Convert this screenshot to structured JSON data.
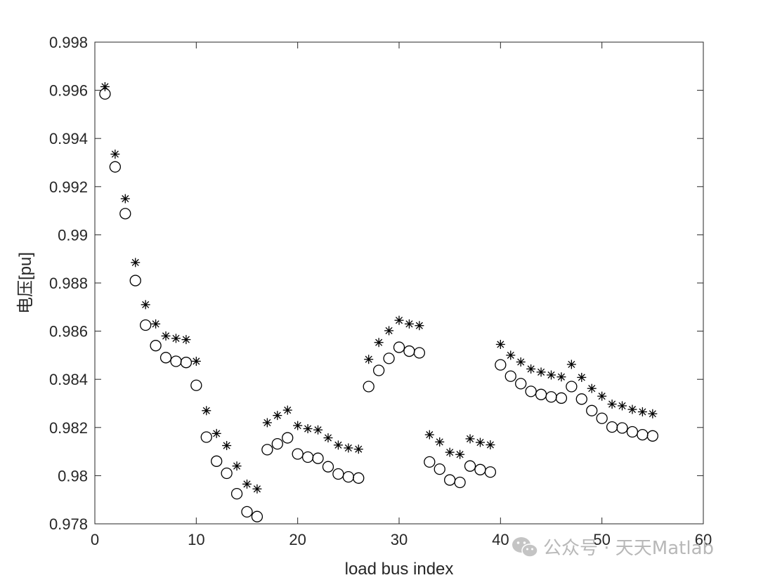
{
  "chart_data": {
    "type": "scatter",
    "title": "",
    "xlabel": "load bus index",
    "ylabel": "电压[pu]",
    "xlim": [
      0,
      60
    ],
    "ylim": [
      0.978,
      0.998
    ],
    "xticks": [
      "0",
      "10",
      "20",
      "30",
      "40",
      "50",
      "60"
    ],
    "yticks": [
      "0.978",
      "0.98",
      "0.982",
      "0.984",
      "0.986",
      "0.988",
      "0.99",
      "0.992",
      "0.994",
      "0.996",
      "0.998"
    ],
    "grid": false,
    "legend": "none",
    "x": [
      1,
      2,
      3,
      4,
      5,
      6,
      7,
      8,
      9,
      10,
      11,
      12,
      13,
      14,
      15,
      16,
      17,
      18,
      19,
      20,
      21,
      22,
      23,
      24,
      25,
      26,
      27,
      28,
      29,
      30,
      31,
      32,
      33,
      34,
      35,
      36,
      37,
      38,
      39,
      40,
      41,
      42,
      43,
      44,
      45,
      46,
      47,
      48,
      49,
      50,
      51,
      52,
      53,
      54,
      55
    ],
    "series": [
      {
        "marker": "star",
        "color": "#000000",
        "values": [
          0.99615,
          0.99335,
          0.9915,
          0.98885,
          0.9871,
          0.9863,
          0.9858,
          0.9857,
          0.98565,
          0.98475,
          0.9827,
          0.98175,
          0.98125,
          0.9804,
          0.97965,
          0.97945,
          0.9822,
          0.9825,
          0.98272,
          0.98208,
          0.98195,
          0.9819,
          0.98157,
          0.98127,
          0.98115,
          0.9811,
          0.98483,
          0.98553,
          0.98602,
          0.98645,
          0.9863,
          0.98623,
          0.9817,
          0.9814,
          0.98097,
          0.98088,
          0.98153,
          0.98138,
          0.98128,
          0.98545,
          0.985,
          0.98472,
          0.98443,
          0.9843,
          0.98418,
          0.9841,
          0.98462,
          0.98408,
          0.98362,
          0.9833,
          0.98297,
          0.9829,
          0.98275,
          0.98265,
          0.98257
        ]
      },
      {
        "marker": "circle",
        "color": "#000000",
        "values": [
          0.99585,
          0.99282,
          0.99088,
          0.9881,
          0.98625,
          0.9854,
          0.9849,
          0.98475,
          0.9847,
          0.98375,
          0.9816,
          0.9806,
          0.9801,
          0.97925,
          0.9785,
          0.9783,
          0.98108,
          0.98132,
          0.98157,
          0.9809,
          0.98077,
          0.98072,
          0.98037,
          0.98007,
          0.97995,
          0.9799,
          0.9837,
          0.98437,
          0.98487,
          0.98533,
          0.98517,
          0.9851,
          0.98057,
          0.98027,
          0.97982,
          0.97972,
          0.9804,
          0.98025,
          0.98015,
          0.9846,
          0.98413,
          0.98382,
          0.9835,
          0.98337,
          0.98327,
          0.98322,
          0.9837,
          0.98318,
          0.9827,
          0.98238,
          0.98202,
          0.98198,
          0.98182,
          0.9817,
          0.98165
        ]
      }
    ]
  },
  "watermark": {
    "text": "公众号 · 天天Matlab",
    "icon": "wechat-icon"
  }
}
